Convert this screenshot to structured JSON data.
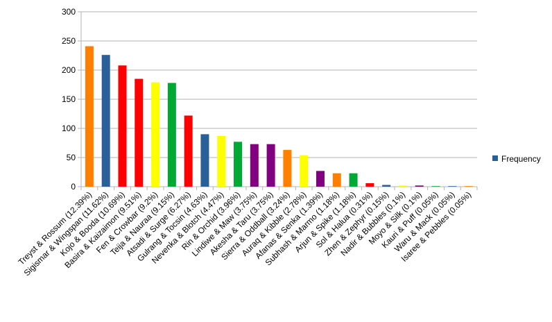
{
  "chart_data": {
    "type": "bar",
    "categories": [
      "Treyst & Rossum (12.39%)",
      "Sigismar & Wingspan (11.62%)",
      "Kojo & Booda (10.69%)",
      "Basira & Kaizaimon (9.51%)",
      "Fen & Crowbar (9.2%)",
      "Teija & Nauraa (9.15%)",
      "Atsadi & Surge (6.27%)",
      "Gulrang & Tocsin (4.63%)",
      "Nevenka & Blotch (4.47%)",
      "Rin & Orchid (3.96%)",
      "Lindiwe & Maw (3.75%)",
      "Akesha & Taru (3.75%)",
      "Sierra & Oddball (3.24%)",
      "Auraq & Kibble (2.78%)",
      "Afanas & Senka (1.39%)",
      "Subhash & Marmo (1.18%)",
      "Arjun & Spike (1.18%)",
      "Sol & Halua (0.31%)",
      "Zhen & Zephyr (0.15%)",
      "Nadir & Bubbles (0.1%)",
      "Moyo & Silk (0.1%)",
      "Kauri & Puff (0.05%)",
      "Waru & Mack (0.05%)",
      "Isaree & Pebbles (0.05%)"
    ],
    "series": [
      {
        "name": "Frequency",
        "color": "#2a6099",
        "values": [
          241,
          226,
          208,
          185,
          179,
          178,
          122,
          90,
          87,
          77,
          73,
          73,
          63,
          54,
          27,
          23,
          23,
          6,
          3,
          2,
          2,
          1,
          1,
          1
        ],
        "colors": [
          "#ff8000",
          "#2a6099",
          "#ff0000",
          "#ff0000",
          "#ffff00",
          "#00a933",
          "#ff0000",
          "#2a6099",
          "#ffff00",
          "#00a933",
          "#800080",
          "#800080",
          "#ff8000",
          "#ffff00",
          "#800080",
          "#ff8000",
          "#00a933",
          "#ff0000",
          "#2a6099",
          "#ffff00",
          "#800080",
          "#00a933",
          "#2a6099",
          "#ff8000"
        ]
      }
    ],
    "ylim": [
      0,
      300
    ],
    "yticks": [
      0,
      50,
      100,
      150,
      200,
      250,
      300
    ],
    "grid": true,
    "legend": "right"
  }
}
